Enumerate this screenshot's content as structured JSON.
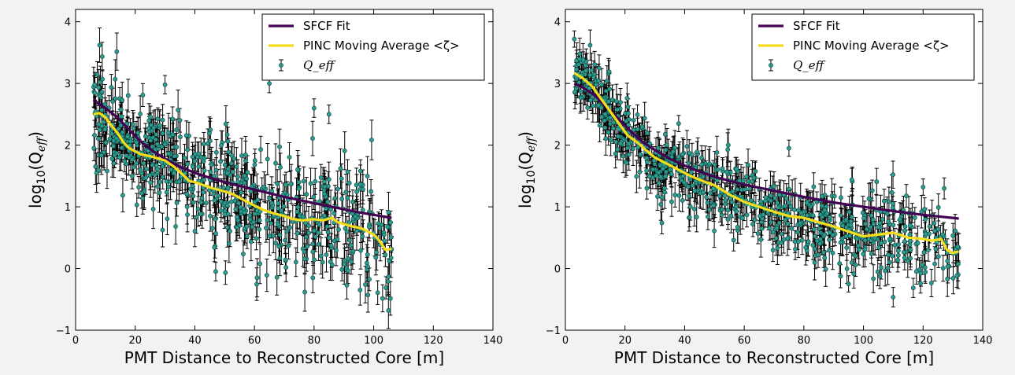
{
  "chart_data": [
    {
      "type": "scatter",
      "xlabel": "PMT Distance to Reconstructed Core [m]",
      "ylabel": "log10(Qeff)",
      "ylabel_main": "log",
      "ylabel_sub": "10",
      "ylabel_open": "(Q",
      "ylabel_sub2": "eff",
      "ylabel_close": ")",
      "xlim": [
        0,
        140
      ],
      "ylim": [
        -1,
        4.2
      ],
      "xticks": [
        "0",
        "20",
        "40",
        "60",
        "80",
        "100",
        "120",
        "140"
      ],
      "yticks": [
        "−1",
        "0",
        "1",
        "2",
        "3",
        "4"
      ],
      "legend_position": "top-right",
      "legend": [
        {
          "label": "SFCF Fit",
          "color": "#440154",
          "kind": "line"
        },
        {
          "label": "PINC Moving Average <ζ>",
          "color": "#f5dd1a",
          "kind": "line"
        },
        {
          "label": "Q_eff",
          "color": "#2a9d8f",
          "kind": "errorbar"
        }
      ],
      "series": [
        {
          "name": "SFCF Fit",
          "color": "#440154",
          "x": [
            6,
            10,
            14,
            18,
            22,
            26,
            30,
            35,
            40,
            45,
            50,
            55,
            60,
            65,
            70,
            75,
            80,
            85,
            90,
            95,
            100,
            106
          ],
          "y": [
            2.73,
            2.6,
            2.45,
            2.25,
            2.05,
            1.9,
            1.78,
            1.65,
            1.55,
            1.47,
            1.4,
            1.34,
            1.28,
            1.22,
            1.16,
            1.11,
            1.06,
            1.01,
            0.96,
            0.91,
            0.87,
            0.82
          ]
        },
        {
          "name": "PINC Moving Average <ζ>",
          "color": "#f5dd1a",
          "x": [
            6,
            8,
            10,
            12,
            14,
            16,
            18,
            20,
            22,
            25,
            28,
            30,
            33,
            36,
            38,
            40,
            43,
            46,
            50,
            53,
            56,
            60,
            63,
            66,
            70,
            73,
            76,
            80,
            83,
            86,
            88,
            90,
            93,
            96,
            98,
            100,
            102,
            104,
            106
          ],
          "y": [
            2.5,
            2.52,
            2.45,
            2.32,
            2.2,
            2.05,
            1.95,
            1.9,
            1.85,
            1.82,
            1.78,
            1.75,
            1.65,
            1.52,
            1.42,
            1.4,
            1.35,
            1.3,
            1.25,
            1.2,
            1.12,
            1.02,
            0.95,
            0.9,
            0.85,
            0.8,
            0.78,
            0.8,
            0.78,
            0.82,
            0.75,
            0.72,
            0.68,
            0.65,
            0.6,
            0.55,
            0.45,
            0.3,
            0.32
          ]
        }
      ],
      "scatter": {
        "name": "Q_eff",
        "color": "#2a9d8f",
        "x_range": [
          6,
          106
        ],
        "n_points": 650,
        "typical_error": 0.25,
        "outliers": [
          [
            9,
            3.07
          ],
          [
            30,
            2.98
          ],
          [
            65,
            3.0
          ],
          [
            47,
            -0.05
          ],
          [
            85,
            2.5
          ],
          [
            80,
            2.6
          ]
        ]
      }
    },
    {
      "type": "scatter",
      "xlabel": "PMT Distance to Reconstructed Core [m]",
      "ylabel": "log10(Qeff)",
      "ylabel_main": "log",
      "ylabel_sub": "10",
      "ylabel_open": "(Q",
      "ylabel_sub2": "eff",
      "ylabel_close": ")",
      "xlim": [
        0,
        140
      ],
      "ylim": [
        -1,
        4.2
      ],
      "xticks": [
        "0",
        "20",
        "40",
        "60",
        "80",
        "100",
        "120",
        "140"
      ],
      "yticks": [
        "−1",
        "0",
        "1",
        "2",
        "3",
        "4"
      ],
      "legend_position": "top-right",
      "legend": [
        {
          "label": "SFCF Fit",
          "color": "#440154",
          "kind": "line"
        },
        {
          "label": "PINC Moving Average <ζ>",
          "color": "#f5dd1a",
          "kind": "line"
        },
        {
          "label": "Q_eff",
          "color": "#2a9d8f",
          "kind": "errorbar"
        }
      ],
      "series": [
        {
          "name": "SFCF Fit",
          "color": "#440154",
          "x": [
            3,
            6,
            10,
            14,
            18,
            22,
            26,
            30,
            35,
            40,
            45,
            50,
            55,
            60,
            70,
            80,
            90,
            100,
            110,
            120,
            132
          ],
          "y": [
            3.0,
            2.93,
            2.8,
            2.6,
            2.42,
            2.22,
            2.05,
            1.92,
            1.78,
            1.67,
            1.57,
            1.49,
            1.42,
            1.36,
            1.26,
            1.16,
            1.07,
            1.0,
            0.93,
            0.87,
            0.81
          ]
        },
        {
          "name": "PINC Moving Average <ζ>",
          "color": "#f5dd1a",
          "x": [
            3,
            6,
            9,
            12,
            15,
            18,
            21,
            24,
            27,
            30,
            34,
            38,
            42,
            46,
            50,
            55,
            60,
            65,
            70,
            75,
            80,
            85,
            90,
            95,
            100,
            105,
            110,
            115,
            120,
            123,
            126,
            128,
            130,
            132
          ],
          "y": [
            3.17,
            3.08,
            2.95,
            2.75,
            2.55,
            2.35,
            2.15,
            2.05,
            1.92,
            1.8,
            1.7,
            1.6,
            1.5,
            1.42,
            1.35,
            1.2,
            1.08,
            1.0,
            0.92,
            0.85,
            0.82,
            0.75,
            0.68,
            0.6,
            0.52,
            0.55,
            0.58,
            0.5,
            0.48,
            0.45,
            0.48,
            0.3,
            0.25,
            0.28
          ]
        }
      ],
      "scatter": {
        "name": "Q_eff",
        "color": "#2a9d8f",
        "x_range": [
          3,
          132
        ],
        "n_points": 750,
        "typical_error": 0.22,
        "outliers": [
          [
            3,
            3.72
          ],
          [
            6,
            3.38
          ],
          [
            38,
            2.35
          ],
          [
            75,
            1.95
          ],
          [
            120,
            1.32
          ],
          [
            95,
            -0.25
          ]
        ]
      }
    }
  ]
}
